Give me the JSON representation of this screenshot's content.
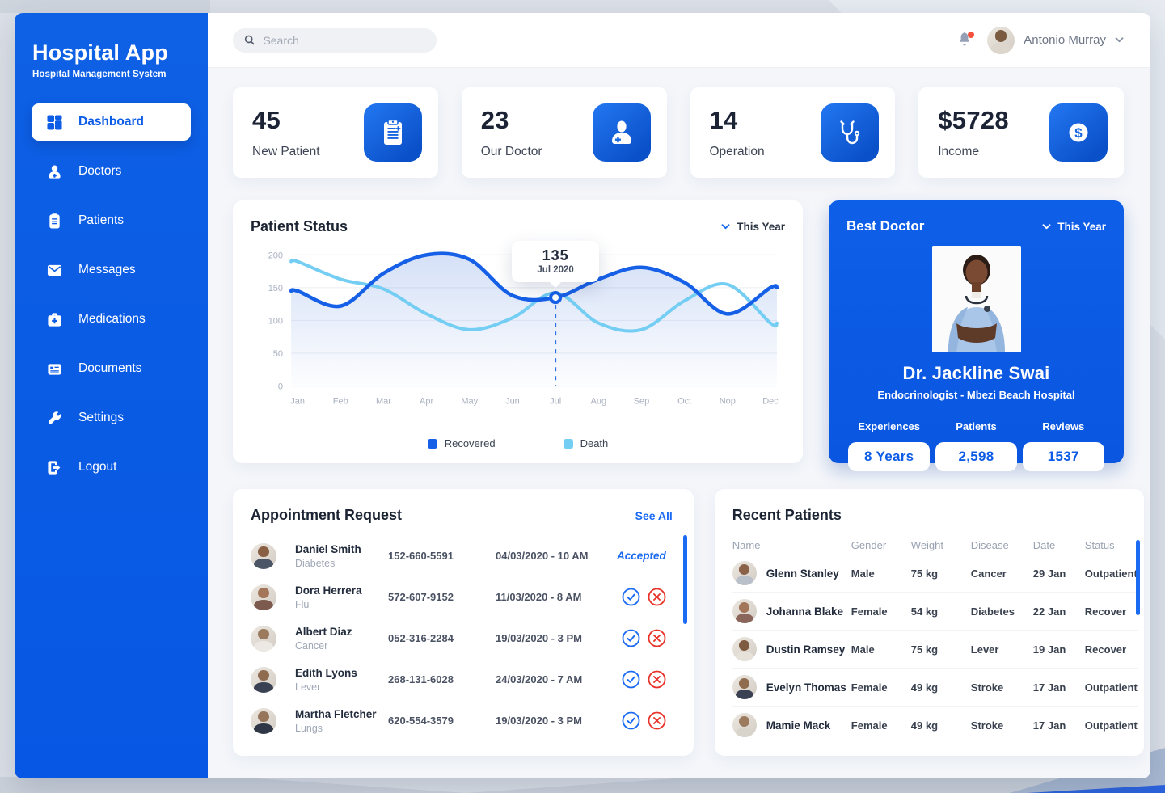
{
  "app": {
    "name": "Hospital App",
    "subtitle": "Hospital Management System"
  },
  "sidebar": {
    "items": [
      {
        "label": "Dashboard",
        "icon": "dashboard-grid-icon",
        "active": true
      },
      {
        "label": "Doctors",
        "icon": "doctor-icon",
        "active": false
      },
      {
        "label": "Patients",
        "icon": "clipboard-icon",
        "active": false
      },
      {
        "label": "Messages",
        "icon": "envelope-icon",
        "active": false
      },
      {
        "label": "Medications",
        "icon": "medical-bag-icon",
        "active": false
      },
      {
        "label": "Documents",
        "icon": "document-icon",
        "active": false
      },
      {
        "label": "Settings",
        "icon": "wrench-icon",
        "active": false
      },
      {
        "label": "Logout",
        "icon": "logout-icon",
        "active": false
      }
    ]
  },
  "topbar": {
    "search_placeholder": "Search",
    "user_name": "Antonio Murray"
  },
  "stats": [
    {
      "value": "45",
      "label": "New Patient",
      "icon": "clipboard-icon"
    },
    {
      "value": "23",
      "label": "Our Doctor",
      "icon": "doctor-plus-icon"
    },
    {
      "value": "14",
      "label": "Operation",
      "icon": "stethoscope-icon"
    },
    {
      "value": "$5728",
      "label": "Income",
      "icon": "dollar-icon"
    }
  ],
  "patient_status": {
    "title": "Patient Status",
    "filter_label": "This Year"
  },
  "chart_data": {
    "type": "line",
    "title": "Patient Status",
    "x": [
      "Jan",
      "Feb",
      "Mar",
      "Apr",
      "May",
      "Jun",
      "Jul",
      "Aug",
      "Sep",
      "Oct",
      "Nop",
      "Dec"
    ],
    "series": [
      {
        "name": "Recovered",
        "color": "#1660e8",
        "values": [
          145,
          122,
          172,
          200,
          193,
          138,
          135,
          163,
          181,
          158,
          110,
          150
        ]
      },
      {
        "name": "Death",
        "color": "#74cdf3",
        "values": [
          190,
          163,
          148,
          110,
          86,
          104,
          142,
          96,
          86,
          130,
          155,
          96
        ]
      }
    ],
    "ylim": [
      0,
      200
    ],
    "yticks": [
      0,
      50,
      100,
      150,
      200
    ],
    "grid": true,
    "legend_position": "bottom",
    "area_under": "Recovered",
    "tooltip": {
      "value": "135",
      "label": "Jul 2020",
      "series": "Recovered",
      "month_index": 6
    }
  },
  "best_doctor": {
    "title": "Best Doctor",
    "filter_label": "This Year",
    "name": "Dr. Jackline Swai",
    "specialty": "Endocrinologist - Mbezi Beach Hospital",
    "stats": [
      {
        "label": "Experiences",
        "value": "8 Years"
      },
      {
        "label": "Patients",
        "value": "2,598"
      },
      {
        "label": "Reviews",
        "value": "1537"
      }
    ]
  },
  "appointments": {
    "title": "Appointment Request",
    "see_all_label": "See All",
    "rows": [
      {
        "name": "Daniel Smith",
        "condition": "Diabetes",
        "phone": "152-660-5591",
        "datetime": "04/03/2020 - 10 AM",
        "status": "Accepted"
      },
      {
        "name": "Dora Herrera",
        "condition": "Flu",
        "phone": "572-607-9152",
        "datetime": "11/03/2020 - 8 AM",
        "status": ""
      },
      {
        "name": "Albert Diaz",
        "condition": "Cancer",
        "phone": "052-316-2284",
        "datetime": "19/03/2020 - 3 PM",
        "status": ""
      },
      {
        "name": "Edith Lyons",
        "condition": "Lever",
        "phone": "268-131-6028",
        "datetime": "24/03/2020 - 7 AM",
        "status": ""
      },
      {
        "name": "Martha Fletcher",
        "condition": "Lungs",
        "phone": "620-554-3579",
        "datetime": "19/03/2020 - 3 PM",
        "status": ""
      }
    ]
  },
  "recent_patients": {
    "title": "Recent Patients",
    "columns": [
      "Name",
      "Gender",
      "Weight",
      "Disease",
      "Date",
      "Status"
    ],
    "rows": [
      {
        "name": "Glenn Stanley",
        "gender": "Male",
        "weight": "75 kg",
        "disease": "Cancer",
        "date": "29 Jan",
        "status": "Outpatient"
      },
      {
        "name": "Johanna Blake",
        "gender": "Female",
        "weight": "54 kg",
        "disease": "Diabetes",
        "date": "22 Jan",
        "status": "Recover"
      },
      {
        "name": "Dustin Ramsey",
        "gender": "Male",
        "weight": "75 kg",
        "disease": "Lever",
        "date": "19 Jan",
        "status": "Recover"
      },
      {
        "name": "Evelyn Thomas",
        "gender": "Female",
        "weight": "49 kg",
        "disease": "Stroke",
        "date": "17 Jan",
        "status": "Outpatient"
      },
      {
        "name": "Mamie Mack",
        "gender": "Female",
        "weight": "49 kg",
        "disease": "Stroke",
        "date": "17 Jan",
        "status": "Outpatient"
      }
    ]
  },
  "colors": {
    "accent_blue": "#0d5ce6",
    "link_blue": "#1a6af2",
    "danger_red": "#e8332a",
    "recovered_line": "#1660e8",
    "death_line": "#74cdf3"
  }
}
